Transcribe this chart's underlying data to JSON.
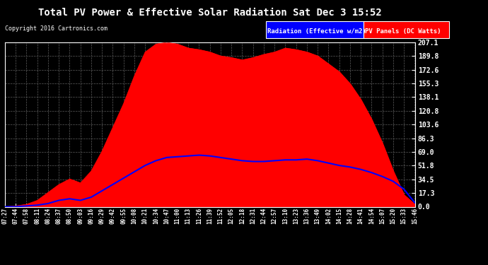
{
  "title": "Total PV Power & Effective Solar Radiation Sat Dec 3 15:52",
  "copyright": "Copyright 2016 Cartronics.com",
  "legend_radiation": "Radiation (Effective w/m2)",
  "legend_pv": "PV Panels (DC Watts)",
  "bg_color": "#000000",
  "plot_bg_color": "#000000",
  "grid_color": "#666666",
  "radiation_color": "#0000ff",
  "pv_color": "#ff0000",
  "yticks": [
    0.0,
    17.3,
    34.5,
    51.8,
    69.0,
    86.3,
    103.6,
    120.8,
    138.1,
    155.3,
    172.6,
    189.8,
    207.1
  ],
  "xtick_labels": [
    "07:27",
    "07:44",
    "07:58",
    "08:11",
    "08:24",
    "08:37",
    "08:50",
    "09:03",
    "09:16",
    "09:29",
    "09:42",
    "09:55",
    "10:08",
    "10:21",
    "10:34",
    "10:47",
    "11:00",
    "11:13",
    "11:26",
    "11:39",
    "11:52",
    "12:05",
    "12:18",
    "12:31",
    "12:44",
    "12:57",
    "13:10",
    "13:23",
    "13:36",
    "13:49",
    "14:02",
    "14:15",
    "14:28",
    "14:41",
    "14:54",
    "15:07",
    "15:20",
    "15:33",
    "15:46"
  ],
  "pv_values": [
    0,
    1,
    3,
    8,
    18,
    28,
    35,
    30,
    45,
    70,
    100,
    130,
    165,
    195,
    205,
    207,
    205,
    200,
    198,
    195,
    190,
    188,
    185,
    188,
    192,
    195,
    200,
    198,
    195,
    190,
    180,
    170,
    155,
    135,
    110,
    80,
    45,
    15,
    3
  ],
  "radiation_values": [
    0,
    0,
    1,
    2,
    4,
    8,
    10,
    8,
    12,
    20,
    28,
    36,
    44,
    52,
    58,
    62,
    63,
    64,
    65,
    64,
    62,
    60,
    58,
    57,
    57,
    58,
    59,
    59,
    60,
    58,
    55,
    52,
    50,
    47,
    43,
    38,
    32,
    22,
    5
  ],
  "ymax": 207.1
}
